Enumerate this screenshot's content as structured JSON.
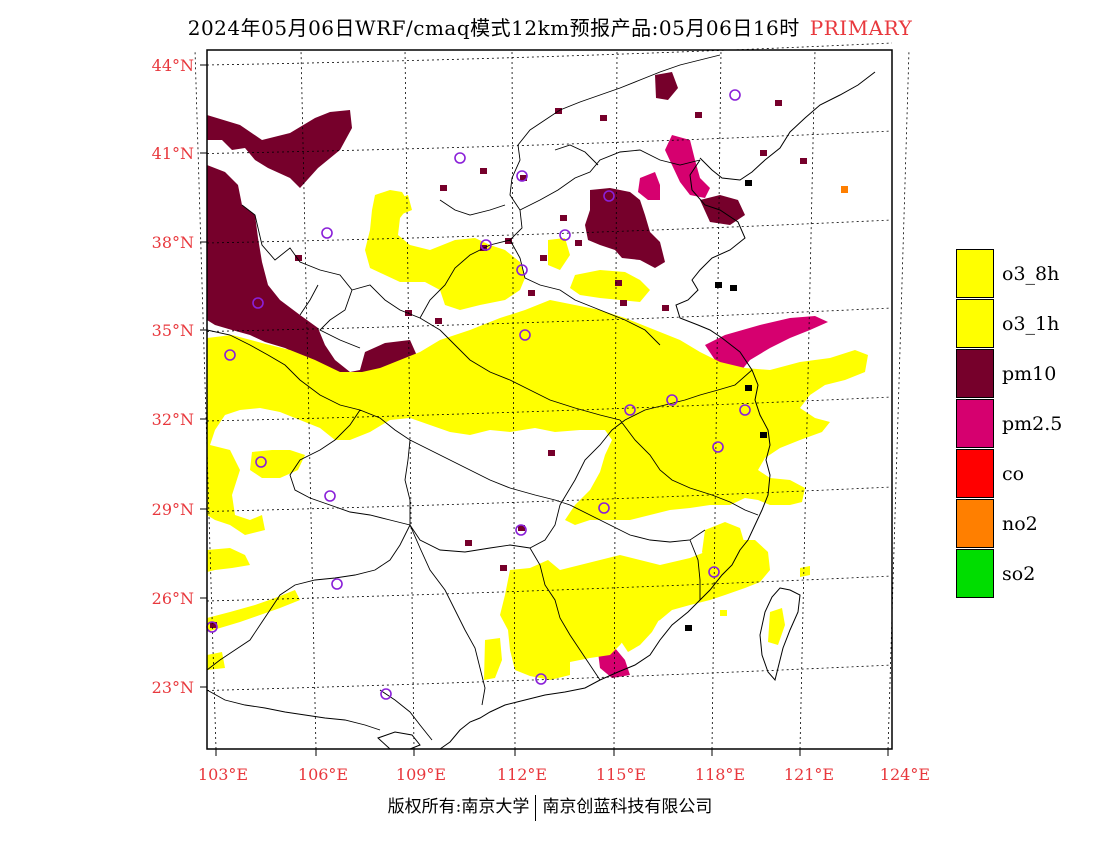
{
  "header": {
    "title": "2024年05月06日WRF/cmaq模式12km预报产品:05月06日16时",
    "tag": "PRIMARY"
  },
  "map": {
    "lat_labels": [
      "44°N",
      "41°N",
      "38°N",
      "35°N",
      "32°N",
      "29°N",
      "26°N",
      "23°N"
    ],
    "lon_labels": [
      "103°E",
      "106°E",
      "109°E",
      "112°E",
      "115°E",
      "118°E",
      "121°E",
      "124°E"
    ],
    "pollutant_colors": {
      "o3_8h": "#ffff00",
      "o3_1h": "#ffff00",
      "pm10": "#76002b",
      "pm2_5": "#d6006f",
      "co": "#ff0000",
      "no2": "#ff7f00",
      "so2": "#00dd00"
    }
  },
  "legend": {
    "items": [
      {
        "label": "o3_8h",
        "color": "#ffff00"
      },
      {
        "label": "o3_1h",
        "color": "#ffff00"
      },
      {
        "label": "pm10",
        "color": "#76002b"
      },
      {
        "label": "pm2.5",
        "color": "#d6006f"
      },
      {
        "label": "co",
        "color": "#ff0000"
      },
      {
        "label": "no2",
        "color": "#ff7f00"
      },
      {
        "label": "so2",
        "color": "#00dd00"
      }
    ]
  },
  "footer": {
    "left": "版权所有:南京大学",
    "right": "南京创蓝科技有限公司"
  }
}
